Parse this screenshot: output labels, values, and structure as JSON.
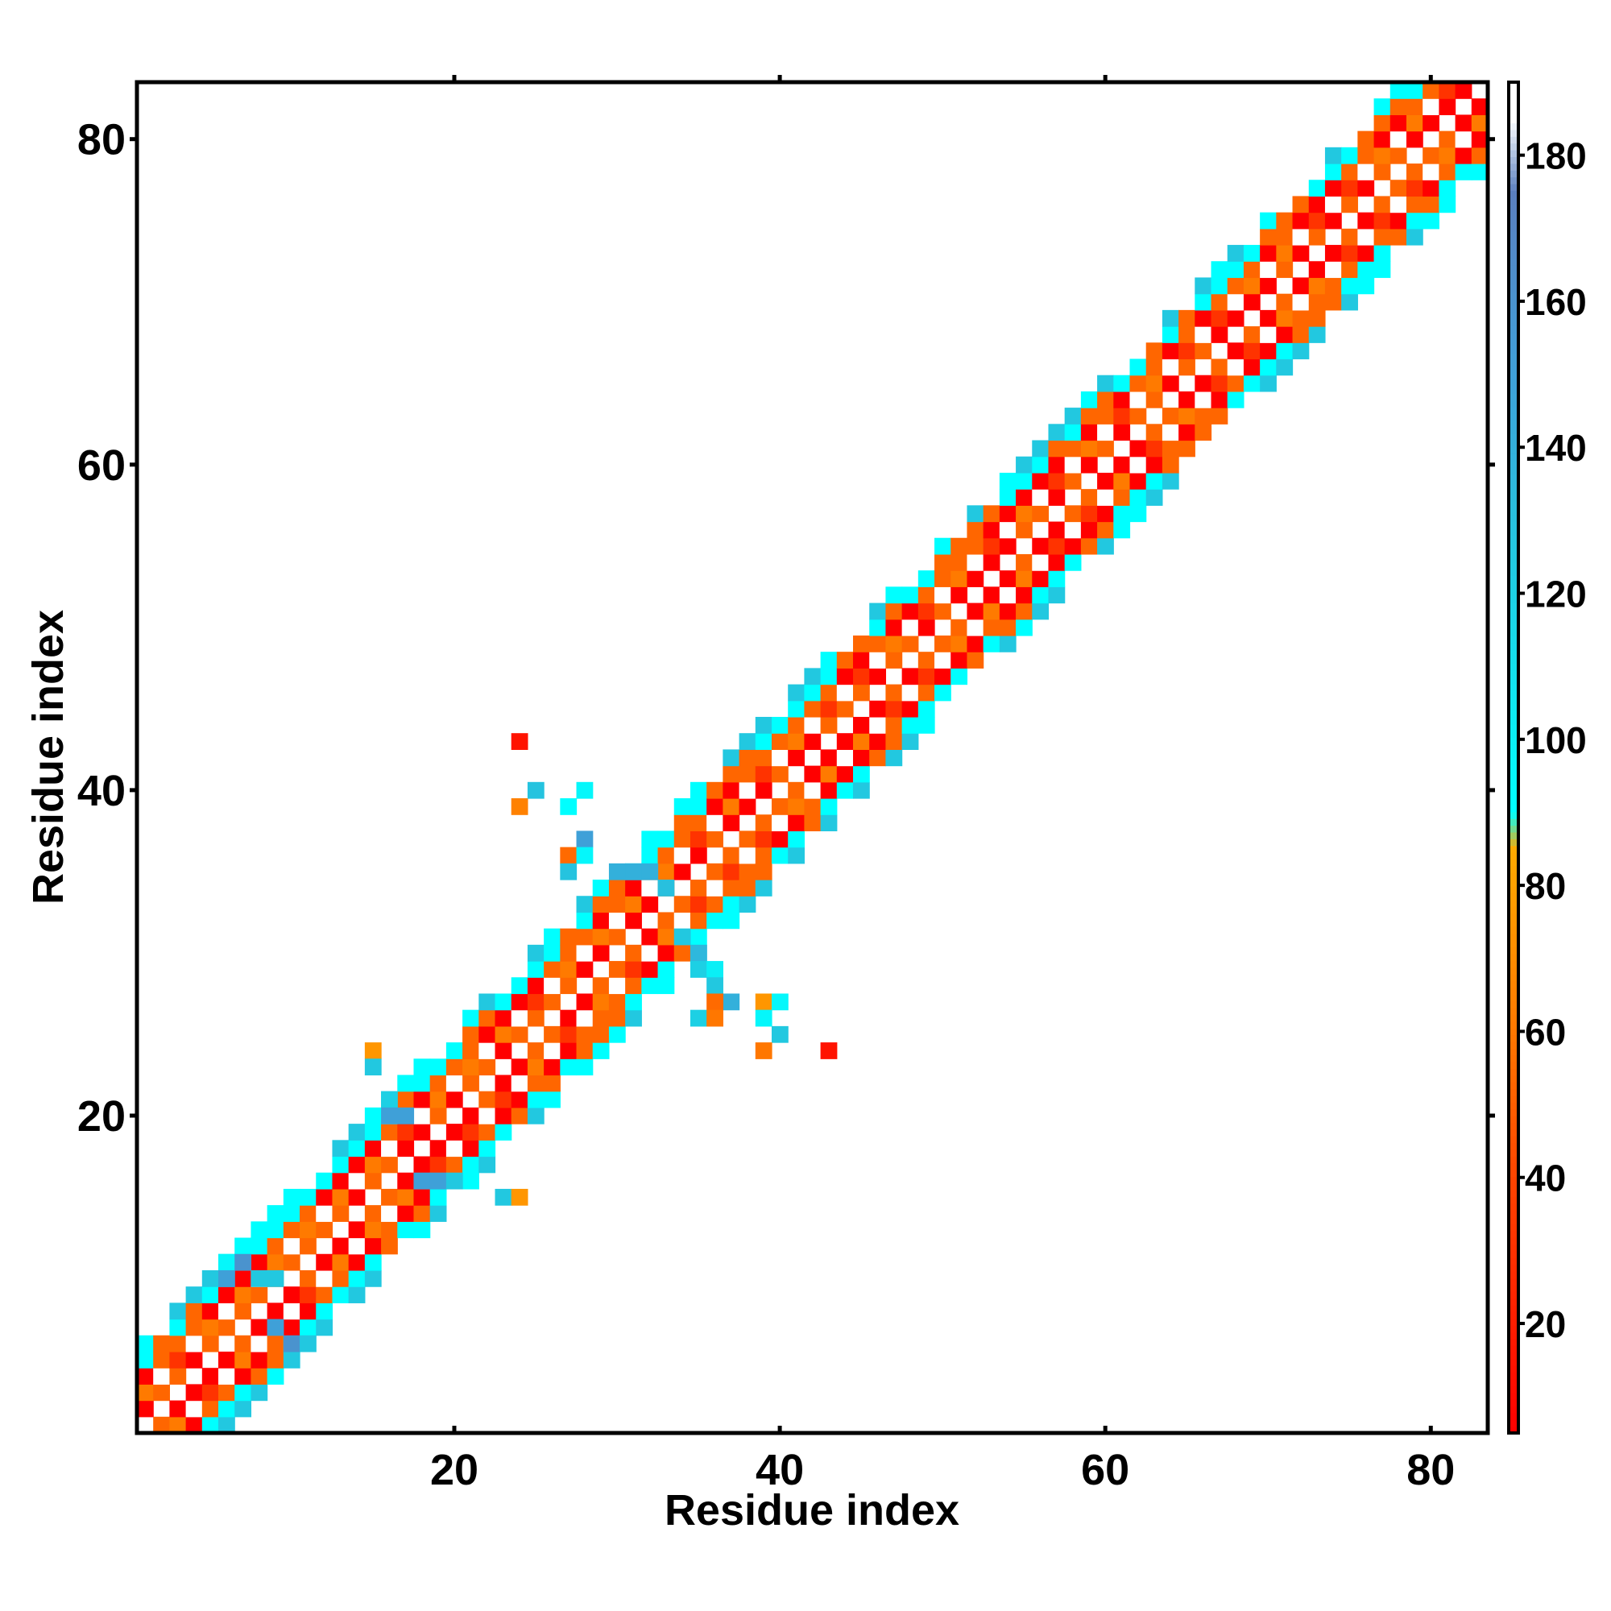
{
  "chart_data": {
    "type": "heatmap",
    "title": "",
    "xlabel": "Residue index",
    "ylabel": "Residue index",
    "xlim": [
      1,
      83
    ],
    "ylim": [
      1,
      83
    ],
    "x_ticks": [
      20,
      40,
      60,
      80
    ],
    "y_ticks": [
      20,
      40,
      60,
      80
    ],
    "colorbar": {
      "ticks": [
        20,
        40,
        60,
        80,
        100,
        120,
        140,
        160,
        180
      ],
      "range": [
        5,
        190
      ],
      "colors": [
        {
          "value": 5,
          "color": "#ff0000"
        },
        {
          "value": 40,
          "color": "#ff4400"
        },
        {
          "value": 60,
          "color": "#ff7700"
        },
        {
          "value": 85,
          "color": "#ffaa00"
        },
        {
          "value": 90,
          "color": "#00ffff"
        },
        {
          "value": 125,
          "color": "#22c8e0"
        },
        {
          "value": 150,
          "color": "#3fa0d8"
        },
        {
          "value": 175,
          "color": "#5a7fbf"
        },
        {
          "value": 185,
          "color": "#ffffff"
        }
      ]
    },
    "pattern": "Contact/angle map concentrated along the main diagonal (|i-j| <= ~5), with a few off-diagonal contacts near residues 24-43 / 23-43",
    "points": [
      [
        24,
        43,
        15
      ],
      [
        24,
        39,
        65
      ],
      [
        25,
        40,
        128
      ],
      [
        28,
        40,
        95
      ],
      [
        27,
        39,
        90
      ],
      [
        28,
        37,
        150
      ],
      [
        27,
        36,
        55
      ],
      [
        27,
        35,
        128
      ],
      [
        28,
        36,
        95
      ],
      [
        30,
        35,
        140
      ],
      [
        31,
        35,
        140
      ],
      [
        32,
        35,
        140
      ],
      [
        33,
        34,
        130
      ],
      [
        34,
        31,
        125
      ],
      [
        35,
        30,
        135
      ],
      [
        35,
        29,
        120
      ],
      [
        36,
        29,
        100
      ],
      [
        36,
        28,
        125
      ],
      [
        37,
        27,
        140
      ],
      [
        36,
        27,
        55
      ],
      [
        35,
        26,
        120
      ],
      [
        36,
        26,
        60
      ],
      [
        39,
        27,
        75
      ],
      [
        39,
        26,
        95
      ],
      [
        40,
        27,
        95
      ],
      [
        40,
        25,
        125
      ],
      [
        39,
        24,
        60
      ],
      [
        43,
        24,
        15
      ],
      [
        15,
        24,
        75
      ],
      [
        15,
        23,
        125
      ],
      [
        16,
        21,
        120
      ],
      [
        16,
        20,
        150
      ],
      [
        17,
        20,
        150
      ],
      [
        18,
        16,
        150
      ],
      [
        19,
        16,
        150
      ],
      [
        20,
        16,
        125
      ],
      [
        23,
        15,
        125
      ],
      [
        24,
        15,
        75
      ],
      [
        6,
        11,
        95
      ],
      [
        7,
        11,
        160
      ],
      [
        6,
        10,
        150
      ],
      [
        8,
        10,
        125
      ],
      [
        9,
        10,
        125
      ],
      [
        9,
        7,
        150
      ],
      [
        10,
        6,
        160
      ],
      [
        11,
        6,
        125
      ]
    ]
  }
}
